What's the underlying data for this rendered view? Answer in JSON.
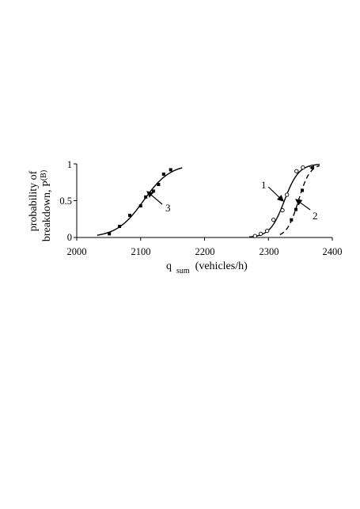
{
  "chart_data": {
    "type": "scatter",
    "xlabel_main": "q",
    "xlabel_sub": "sum",
    "xlabel_rest": "(vehicles/h)",
    "ylabel_line1": "probability of",
    "ylabel_line2": "breakdown, P",
    "ylabel_sup": "(B)",
    "xlim": [
      2000,
      2400
    ],
    "ylim": [
      0,
      1
    ],
    "x_ticks": [
      "2000",
      "2100",
      "2200",
      "2300",
      "2400"
    ],
    "y_ticks": [
      "0",
      "0.5",
      "1"
    ],
    "grid": false,
    "series": [
      {
        "name": "3",
        "marker": "filled-square",
        "line": "solid",
        "points": [
          [
            2051,
            0.05
          ],
          [
            2067,
            0.15
          ],
          [
            2083,
            0.3
          ],
          [
            2100,
            0.43
          ],
          [
            2108,
            0.55
          ],
          [
            2120,
            0.63
          ],
          [
            2128,
            0.72
          ],
          [
            2136,
            0.86
          ],
          [
            2147,
            0.92
          ]
        ],
        "curve_x": [
          2032,
          2165
        ]
      },
      {
        "name": "1",
        "marker": "open-circle",
        "line": "solid",
        "points": [
          [
            2279,
            0.02
          ],
          [
            2288,
            0.05
          ],
          [
            2298,
            0.09
          ],
          [
            2308,
            0.24
          ],
          [
            2322,
            0.37
          ],
          [
            2329,
            0.58
          ],
          [
            2344,
            0.9
          ],
          [
            2354,
            0.95
          ],
          [
            2368,
            0.96
          ]
        ],
        "curve_x": [
          2270,
          2380
        ]
      },
      {
        "name": "2",
        "marker": "filled-square",
        "line": "dashed",
        "points": [
          [
            2336,
            0.24
          ],
          [
            2343,
            0.38
          ],
          [
            2353,
            0.64
          ],
          [
            2369,
            0.95
          ]
        ],
        "curve_x": [
          2318,
          2380
        ]
      }
    ],
    "annotations": [
      "1",
      "2",
      "3"
    ]
  }
}
